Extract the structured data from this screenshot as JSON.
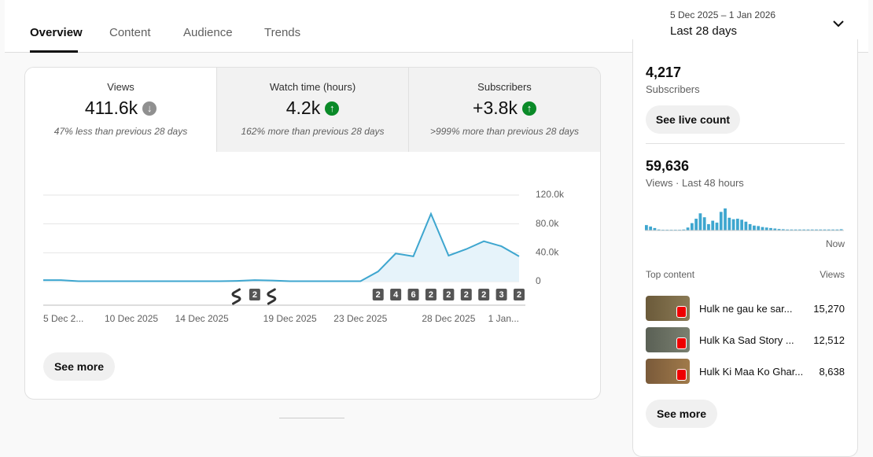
{
  "tabs": [
    "Overview",
    "Content",
    "Audience",
    "Trends"
  ],
  "date_range": {
    "dates": "5 Dec 2025 – 1 Jan 2026",
    "label": "Last 28 days"
  },
  "metrics": [
    {
      "name": "Views",
      "value": "411.6k",
      "change": "47% less than previous 28 days"
    },
    {
      "name": "Watch time (hours)",
      "value": "4.2k",
      "change": "162% more than previous 28 days"
    },
    {
      "name": "Subscribers",
      "value": "+3.8k",
      "change": ">999% more than previous 28 days"
    }
  ],
  "see_more_main": "See more",
  "realtime": {
    "subscribers": "4,217",
    "subscribers_label": "Subscribers",
    "live_button": "See live count",
    "views": "59,636",
    "views_label": "Views · Last 48 hours",
    "now_label": "Now",
    "top_content_label": "Top content",
    "views_header": "Views",
    "top_content": [
      {
        "title": "Hulk ne gau ke sar...",
        "views": "15,270"
      },
      {
        "title": "Hulk Ka Sad Story ...",
        "views": "12,512"
      },
      {
        "title": "Hulk Ki Maa Ko Ghar...",
        "views": "8,638"
      }
    ],
    "see_more": "See more"
  },
  "chart_data": [
    {
      "type": "line",
      "color": "#3ea6cf",
      "categories": [
        "5 Dec 2...",
        null,
        null,
        null,
        null,
        "10 Dec 2025",
        null,
        null,
        null,
        "14 Dec 2025",
        null,
        null,
        null,
        null,
        "19 Dec 2025",
        null,
        null,
        null,
        "23 Dec 2025",
        null,
        null,
        null,
        null,
        "28 Dec 2025",
        null,
        null,
        null,
        "1 Jan..."
      ],
      "values": [
        2000,
        2000,
        500,
        500,
        500,
        500,
        500,
        500,
        500,
        500,
        500,
        1000,
        2000,
        1500,
        500,
        500,
        500,
        500,
        500,
        14000,
        39000,
        35000,
        94000,
        36000,
        45000,
        56000,
        49000,
        35000
      ],
      "markers": [
        null,
        null,
        null,
        null,
        null,
        null,
        null,
        null,
        null,
        null,
        null,
        null,
        "2",
        null,
        null,
        null,
        null,
        null,
        null,
        "2",
        "4",
        "6",
        "2",
        "2",
        "2",
        "2",
        "3",
        "2"
      ],
      "ylim": [
        0,
        120000
      ],
      "yticks": [
        0,
        {
          "value": 40000,
          "label": "40.0k"
        },
        {
          "value": 80000,
          "label": "80.0k"
        },
        {
          "value": 120000,
          "label": "120.0k"
        }
      ],
      "grid": true
    },
    {
      "type": "bar",
      "color": "#3ea6cf",
      "values": [
        1100,
        800,
        500,
        200,
        150,
        150,
        150,
        150,
        150,
        200,
        600,
        1500,
        2400,
        3500,
        2700,
        1300,
        2000,
        1600,
        3800,
        4500,
        2600,
        2300,
        2400,
        2200,
        1800,
        1300,
        1000,
        900,
        700,
        600,
        500,
        400,
        300,
        250,
        200,
        200,
        200,
        200,
        200,
        200,
        200,
        200,
        200,
        200,
        200,
        200,
        200,
        250
      ]
    }
  ]
}
